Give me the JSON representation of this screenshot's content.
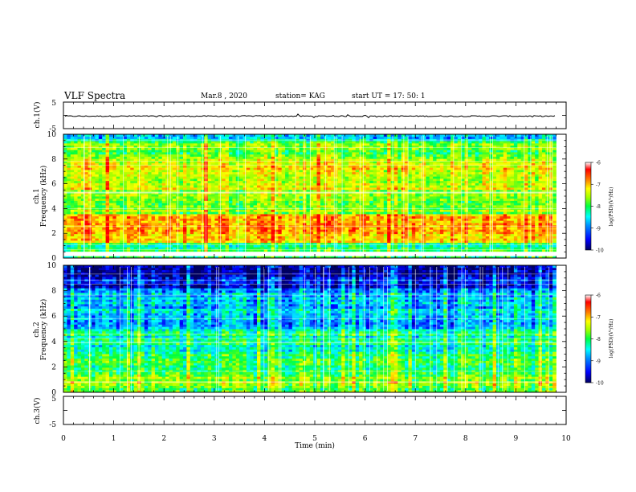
{
  "header": {
    "title": "VLF Spectra",
    "date": "Mar.8  , 2020",
    "station": "station= KAG",
    "start_ut": "start  UT  =   17: 50: 1"
  },
  "chart_data": [
    {
      "type": "line",
      "name": "ch1-waveform",
      "ylabel": "ch.1(V)",
      "ylim": [
        -5,
        5
      ],
      "yticks": [
        "5",
        "-5"
      ],
      "xlim": [
        0,
        10
      ],
      "series": [
        {
          "name": "ch.1",
          "approx_level": -0.3
        }
      ]
    },
    {
      "type": "heatmap",
      "name": "ch1-spectrogram",
      "ylabel_line1": "ch.1",
      "ylabel_line2": "Frequency (kHz)",
      "ylim": [
        0,
        10
      ],
      "yticks": [
        "0",
        "2",
        "4",
        "6",
        "8",
        "10"
      ],
      "xlim": [
        0,
        9.8
      ],
      "colorbar": {
        "label": "log(PSD)(V²/Hz)",
        "range": [
          -10,
          -6
        ],
        "ticks": [
          "-6",
          "-7",
          "-8",
          "-9",
          "-10"
        ]
      }
    },
    {
      "type": "heatmap",
      "name": "ch2-spectrogram",
      "ylabel_line1": "ch.2",
      "ylabel_line2": "Frequency (kHz)",
      "ylim": [
        0,
        10
      ],
      "yticks": [
        "0",
        "2",
        "4",
        "6",
        "8",
        "10"
      ],
      "xlim": [
        0,
        9.8
      ],
      "colorbar": {
        "label": "log(PSD)(V²/Hz)",
        "range": [
          -10,
          -6
        ],
        "ticks": [
          "-6",
          "-7",
          "-8",
          "-9",
          "-10"
        ]
      }
    },
    {
      "type": "line",
      "name": "ch3-waveform",
      "ylabel": "ch.3(V)",
      "ylim": [
        -5,
        5
      ],
      "yticks": [
        "5",
        "-5"
      ],
      "xlim": [
        0,
        10
      ],
      "series": []
    }
  ],
  "x_axis": {
    "label": "Time  (min)",
    "range": [
      0,
      10
    ],
    "ticks": [
      "0",
      "1",
      "2",
      "3",
      "4",
      "5",
      "6",
      "7",
      "8",
      "9",
      "10"
    ]
  },
  "colors": {
    "colormap": [
      "#000060",
      "#0000ff",
      "#0090ff",
      "#00ffff",
      "#00ff40",
      "#a0ff00",
      "#ffff00",
      "#ff8000",
      "#ff0000",
      "#ffffff"
    ]
  }
}
